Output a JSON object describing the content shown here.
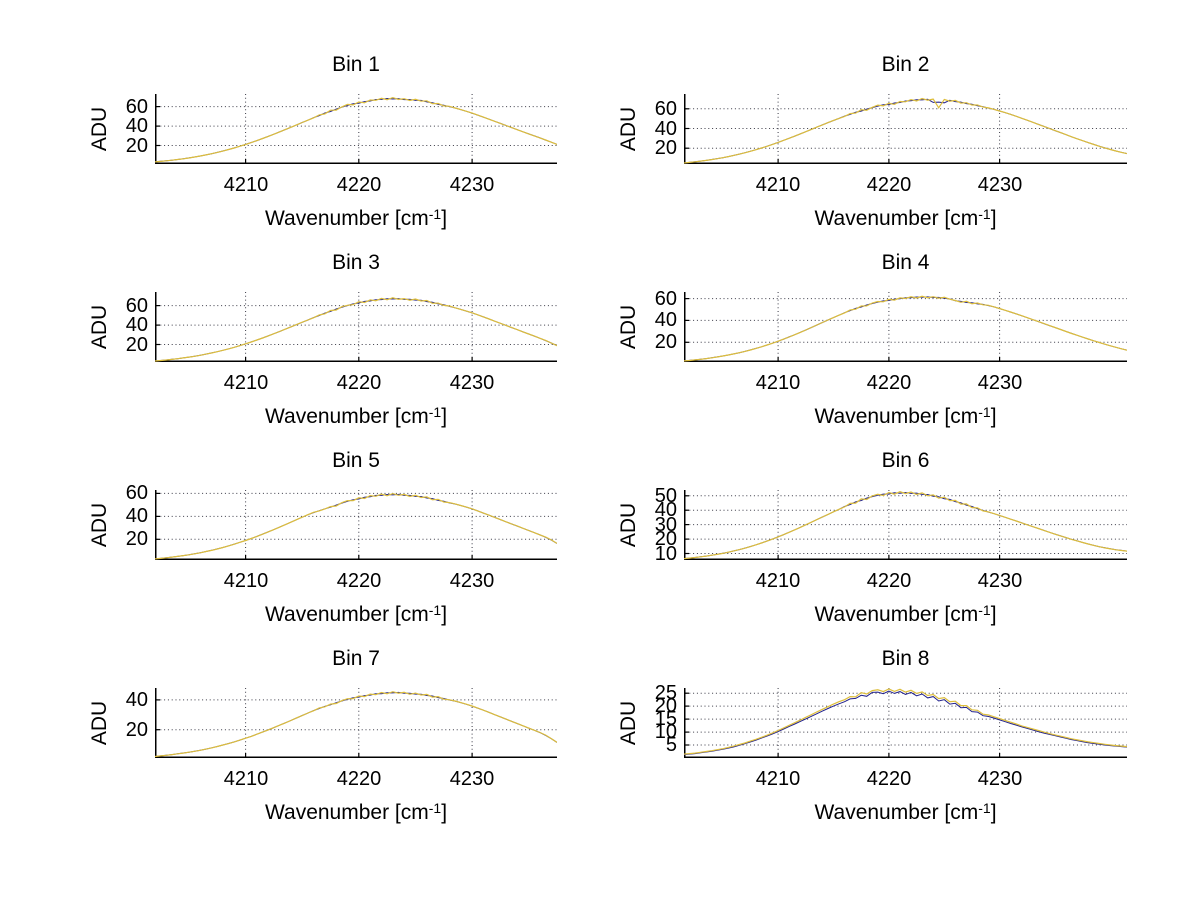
{
  "figure": {
    "background": "#ffffff",
    "axis_color": "#000000",
    "grid_color": "#3a3a46",
    "series_colors": {
      "yellow": "#ddbe3c",
      "blue": "#20208c"
    }
  },
  "ylabel": "ADU",
  "xlabel": {
    "prefix": "Wavenumber [cm",
    "sup": "-1",
    "suffix": "]"
  },
  "chart_data": [
    {
      "type": "line",
      "title": "Bin 1",
      "xlabel": "Wavenumber [cm^-1]",
      "ylabel": "ADU",
      "xlim": [
        4202,
        4237.5
      ],
      "ylim": [
        1,
        73
      ],
      "xticks": [
        4210,
        4220,
        4230
      ],
      "yticks": [
        20,
        40,
        60
      ],
      "grid": true,
      "series": [
        {
          "name": "blue-spectrum",
          "color": "#20208c",
          "values": null,
          "same_as": "yellow-spectrum"
        },
        {
          "name": "yellow-spectrum",
          "color": "#ddbe3c",
          "values": [
            3.2,
            3.7,
            4.3,
            4.9,
            5.6,
            6.4,
            7.2,
            8.2,
            9.2,
            10.4,
            11.6,
            12.9,
            14.3,
            15.9,
            17.5,
            19.3,
            21.1,
            23.0,
            25.1,
            27.2,
            29.4,
            31.7,
            34.0,
            36.4,
            38.8,
            41.2,
            43.7,
            46.1,
            48.4,
            51.5,
            52.5,
            56.3,
            56.3,
            59.7,
            62.3,
            61.8,
            64.8,
            64.0,
            66.8,
            66.5,
            68.6,
            67.1,
            69.3,
            67.3,
            68.2,
            66.3,
            67.5,
            65.6,
            66.0,
            63.0,
            63.2,
            60.8,
            60.3,
            58.6,
            57.0,
            55.2,
            53.4,
            51.3,
            49.2,
            47.0,
            44.9,
            42.8,
            40.6,
            38.4,
            36.2,
            34.1,
            32.0,
            29.9,
            27.8,
            25.7,
            23.4,
            21.2
          ]
        }
      ]
    },
    {
      "type": "line",
      "title": "Bin 2",
      "xlabel": "Wavenumber [cm^-1]",
      "ylabel": "ADU",
      "xlim": [
        4201.5,
        4241.5
      ],
      "ylim": [
        4,
        75
      ],
      "xticks": [
        4210,
        4220,
        4230
      ],
      "yticks": [
        20,
        40,
        60
      ],
      "grid": true,
      "series": [
        {
          "name": "blue-spectrum",
          "color": "#20208c",
          "values": null,
          "same_as": "yellow-spectrum"
        },
        {
          "name": "yellow-spectrum",
          "color": "#ddbe3c",
          "values": [
            5.0,
            5.6,
            6.2,
            6.9,
            7.7,
            8.5,
            9.4,
            10.4,
            11.5,
            12.7,
            14.0,
            15.4,
            16.9,
            18.5,
            20.2,
            22.0,
            23.9,
            25.9,
            28.0,
            30.1,
            32.3,
            34.5,
            36.8,
            39.1,
            41.4,
            43.7,
            46.0,
            48.2,
            50.3,
            52.3,
            55.1,
            55.6,
            59.0,
            58.5,
            61.5,
            63.7,
            62.9,
            65.7,
            64.5,
            67.4,
            67.1,
            69.3,
            67.9,
            70.4,
            68.7,
            69.8,
            61.0,
            69.5,
            67.7,
            68.5,
            65.8,
            66.2,
            63.8,
            63.8,
            61.7,
            60.9,
            59.4,
            57.8,
            56.1,
            54.3,
            52.4,
            50.4,
            48.4,
            46.3,
            44.2,
            42.1,
            40.0,
            37.9,
            35.8,
            33.7,
            31.6,
            29.6,
            27.6,
            25.7,
            23.8,
            22.0,
            20.3,
            18.7,
            17.2,
            15.8,
            14.5
          ]
        }
      ]
    },
    {
      "type": "line",
      "title": "Bin 3",
      "xlabel": "Wavenumber [cm^-1]",
      "ylabel": "ADU",
      "xlim": [
        4202,
        4237.5
      ],
      "ylim": [
        2,
        74
      ],
      "xticks": [
        4210,
        4220,
        4230
      ],
      "yticks": [
        20,
        40,
        60
      ],
      "grid": true,
      "series": [
        {
          "name": "blue-spectrum",
          "color": "#20208c",
          "values": null,
          "same_as": "yellow-spectrum"
        },
        {
          "name": "yellow-spectrum",
          "color": "#ddbe3c",
          "values": [
            3.0,
            3.5,
            4.1,
            4.7,
            5.4,
            6.2,
            7.0,
            7.9,
            8.9,
            10.1,
            11.3,
            12.6,
            14.0,
            15.5,
            17.1,
            18.9,
            20.7,
            22.6,
            24.6,
            26.7,
            28.8,
            31.1,
            33.4,
            35.7,
            38.1,
            40.5,
            42.9,
            45.2,
            47.5,
            50.3,
            51.6,
            55.0,
            55.5,
            58.9,
            60.3,
            61.0,
            63.9,
            63.2,
            65.9,
            65.0,
            67.4,
            66.0,
            68.0,
            66.4,
            67.2,
            65.6,
            66.8,
            64.7,
            65.3,
            62.4,
            62.6,
            60.2,
            59.6,
            57.7,
            56.1,
            54.4,
            52.6,
            50.5,
            48.4,
            46.2,
            44.0,
            41.8,
            39.6,
            37.4,
            35.2,
            33.0,
            30.8,
            28.6,
            26.4,
            24.2,
            21.5,
            18.8
          ]
        }
      ]
    },
    {
      "type": "line",
      "title": "Bin 4",
      "xlabel": "Wavenumber [cm^-1]",
      "ylabel": "ADU",
      "xlim": [
        4201.5,
        4241.5
      ],
      "ylim": [
        2,
        66
      ],
      "xticks": [
        4210,
        4220,
        4230
      ],
      "yticks": [
        20,
        40,
        60
      ],
      "grid": true,
      "series": [
        {
          "name": "blue-spectrum",
          "color": "#20208c",
          "values": null,
          "same_as": "yellow-spectrum"
        },
        {
          "name": "yellow-spectrum",
          "color": "#ddbe3c",
          "values": [
            3.0,
            3.4,
            3.9,
            4.5,
            5.1,
            5.8,
            6.6,
            7.5,
            8.4,
            9.4,
            10.5,
            11.7,
            13.0,
            14.4,
            15.9,
            17.5,
            19.2,
            21.0,
            22.9,
            24.9,
            27.0,
            29.1,
            31.3,
            33.5,
            35.8,
            38.1,
            40.4,
            42.6,
            44.8,
            46.9,
            49.5,
            50.3,
            53.2,
            53.3,
            55.9,
            57.3,
            57.0,
            59.2,
            58.6,
            60.6,
            60.1,
            61.6,
            60.5,
            62.1,
            60.8,
            61.7,
            60.3,
            61.2,
            59.4,
            58.2,
            56.6,
            57.5,
            55.2,
            55.9,
            54.3,
            53.8,
            52.4,
            50.9,
            49.3,
            47.7,
            46.0,
            44.3,
            42.5,
            40.7,
            38.9,
            37.1,
            35.3,
            33.5,
            31.7,
            29.9,
            28.1,
            26.4,
            24.7,
            23.0,
            21.4,
            19.8,
            18.3,
            16.8,
            15.4,
            14.1,
            12.8
          ]
        }
      ]
    },
    {
      "type": "line",
      "title": "Bin 5",
      "xlabel": "Wavenumber [cm^-1]",
      "ylabel": "ADU",
      "xlim": [
        4202,
        4237.5
      ],
      "ylim": [
        2,
        63
      ],
      "xticks": [
        4210,
        4220,
        4230
      ],
      "yticks": [
        20,
        40,
        60
      ],
      "grid": true,
      "series": [
        {
          "name": "blue-spectrum",
          "color": "#20208c",
          "values": null,
          "same_as": "yellow-spectrum"
        },
        {
          "name": "yellow-spectrum",
          "color": "#ddbe3c",
          "values": [
            3.0,
            3.4,
            3.9,
            4.5,
            5.1,
            5.8,
            6.5,
            7.4,
            8.3,
            9.4,
            10.4,
            11.6,
            12.9,
            14.3,
            15.8,
            17.4,
            19.0,
            20.7,
            22.6,
            24.5,
            26.5,
            28.5,
            30.6,
            32.8,
            34.9,
            37.1,
            39.3,
            41.5,
            43.6,
            44.8,
            46.5,
            48.5,
            49.1,
            51.9,
            53.8,
            53.7,
            56.2,
            55.6,
            58.1,
            57.5,
            59.4,
            58.0,
            59.9,
            58.4,
            59.2,
            57.3,
            58.4,
            56.5,
            57.0,
            54.5,
            54.9,
            52.5,
            52.0,
            50.9,
            49.5,
            48.1,
            46.6,
            44.8,
            42.9,
            41.0,
            39.1,
            37.2,
            35.3,
            33.4,
            31.5,
            29.6,
            27.7,
            25.8,
            23.9,
            22.0,
            19.5,
            16.5
          ]
        }
      ]
    },
    {
      "type": "line",
      "title": "Bin 6",
      "xlabel": "Wavenumber [cm^-1]",
      "ylabel": "ADU",
      "xlim": [
        4201.5,
        4241.5
      ],
      "ylim": [
        5.5,
        54
      ],
      "xticks": [
        4210,
        4220,
        4230
      ],
      "yticks": [
        10,
        20,
        30,
        40,
        50
      ],
      "grid": true,
      "series": [
        {
          "name": "blue-spectrum",
          "color": "#20208c",
          "values": null,
          "same_as": "yellow-spectrum"
        },
        {
          "name": "yellow-spectrum",
          "color": "#ddbe3c",
          "values": [
            6.5,
            6.8,
            7.2,
            7.7,
            8.2,
            8.8,
            9.4,
            10.1,
            10.9,
            11.8,
            12.7,
            13.7,
            14.8,
            16.0,
            17.3,
            18.6,
            20.0,
            21.5,
            23.1,
            24.7,
            26.4,
            28.1,
            29.9,
            31.7,
            33.5,
            35.3,
            37.1,
            38.9,
            40.6,
            42.3,
            44.7,
            44.9,
            47.8,
            47.4,
            49.9,
            51.0,
            50.2,
            52.3,
            51.1,
            52.8,
            51.5,
            52.6,
            50.9,
            52.0,
            50.0,
            50.6,
            48.4,
            49.0,
            46.6,
            46.8,
            44.2,
            44.4,
            41.8,
            41.6,
            39.5,
            38.8,
            37.6,
            36.4,
            35.1,
            33.8,
            32.5,
            31.2,
            29.9,
            28.6,
            27.3,
            26.0,
            24.7,
            23.4,
            22.2,
            21.0,
            19.8,
            18.7,
            17.6,
            16.6,
            15.6,
            14.7,
            13.9,
            13.2,
            12.6,
            12.1,
            11.7
          ]
        }
      ]
    },
    {
      "type": "line",
      "title": "Bin 7",
      "xlabel": "Wavenumber [cm^-1]",
      "ylabel": "ADU",
      "xlim": [
        4202,
        4237.5
      ],
      "ylim": [
        1,
        48
      ],
      "xticks": [
        4210,
        4220,
        4230
      ],
      "yticks": [
        20,
        40
      ],
      "grid": true,
      "series": [
        {
          "name": "blue-spectrum",
          "color": "#20208c",
          "values": null,
          "same_as": "yellow-spectrum"
        },
        {
          "name": "yellow-spectrum",
          "color": "#ddbe3c",
          "values": [
            2.0,
            2.4,
            2.8,
            3.3,
            3.8,
            4.3,
            4.9,
            5.5,
            6.2,
            7.0,
            7.8,
            8.7,
            9.7,
            10.7,
            11.8,
            13.0,
            14.3,
            15.5,
            17.0,
            18.4,
            19.9,
            21.4,
            23.0,
            24.6,
            26.2,
            27.9,
            29.5,
            31.2,
            32.7,
            34.6,
            35.4,
            37.2,
            37.6,
            39.5,
            40.8,
            40.9,
            42.6,
            42.2,
            43.9,
            43.5,
            45.0,
            44.1,
            45.5,
            44.5,
            45.1,
            43.8,
            44.6,
            43.3,
            43.7,
            41.9,
            42.2,
            40.5,
            40.1,
            39.3,
            38.2,
            37.1,
            35.9,
            34.6,
            33.1,
            31.6,
            30.1,
            28.6,
            27.1,
            25.6,
            24.1,
            22.6,
            21.1,
            19.6,
            18.1,
            16.4,
            14.0,
            11.5
          ]
        }
      ]
    },
    {
      "type": "line",
      "title": "Bin 8",
      "xlabel": "Wavenumber [cm^-1]",
      "ylabel": "ADU",
      "xlim": [
        4201.5,
        4241.5
      ],
      "ylim": [
        0,
        27
      ],
      "xticks": [
        4210,
        4220,
        4230
      ],
      "yticks": [
        5,
        10,
        15,
        20,
        25
      ],
      "grid": true,
      "series": [
        {
          "name": "blue-spectrum",
          "color": "#20208c",
          "values": [
            1.3,
            1.5,
            1.7,
            2.0,
            2.3,
            2.6,
            3.0,
            3.4,
            3.8,
            4.3,
            4.9,
            5.5,
            6.2,
            6.9,
            7.7,
            8.5,
            9.3,
            10.2,
            11.2,
            12.2,
            13.1,
            14.1,
            15.1,
            16.1,
            17.1,
            18.1,
            19.1,
            20.0,
            20.9,
            21.7,
            22.8,
            23.0,
            24.2,
            23.8,
            25.3,
            25.4,
            24.8,
            25.8,
            24.9,
            25.6,
            24.5,
            25.3,
            24.0,
            24.7,
            23.2,
            23.7,
            22.0,
            22.5,
            20.8,
            21.1,
            19.4,
            19.5,
            17.9,
            17.7,
            16.3,
            16.0,
            15.4,
            14.7,
            14.0,
            13.3,
            12.7,
            12.0,
            11.4,
            10.8,
            10.2,
            9.6,
            9.1,
            8.6,
            8.1,
            7.6,
            7.1,
            6.7,
            6.3,
            5.9,
            5.6,
            5.3,
            5.0,
            4.8,
            4.6,
            4.4,
            4.2
          ]
        },
        {
          "name": "yellow-spectrum",
          "color": "#ddbe3c",
          "values": [
            1.5,
            1.7,
            1.9,
            2.2,
            2.5,
            2.8,
            3.2,
            3.6,
            4.1,
            4.6,
            5.2,
            5.8,
            6.5,
            7.2,
            8.0,
            8.8,
            9.7,
            10.6,
            11.6,
            12.6,
            13.6,
            14.6,
            15.7,
            16.7,
            17.8,
            18.8,
            19.8,
            20.8,
            21.7,
            22.5,
            23.7,
            23.6,
            25.2,
            24.7,
            26.0,
            26.3,
            25.6,
            26.6,
            25.7,
            26.5,
            25.4,
            26.1,
            24.9,
            25.5,
            24.1,
            24.5,
            22.9,
            23.3,
            21.7,
            21.9,
            20.2,
            20.2,
            18.6,
            18.4,
            16.9,
            16.6,
            15.9,
            15.2,
            14.5,
            13.8,
            13.1,
            12.4,
            11.8,
            11.2,
            10.6,
            10.0,
            9.4,
            8.9,
            8.4,
            7.9,
            7.4,
            7.0,
            6.6,
            6.2,
            5.9,
            5.6,
            5.3,
            5.0,
            4.8,
            4.6,
            4.4
          ]
        }
      ]
    }
  ]
}
